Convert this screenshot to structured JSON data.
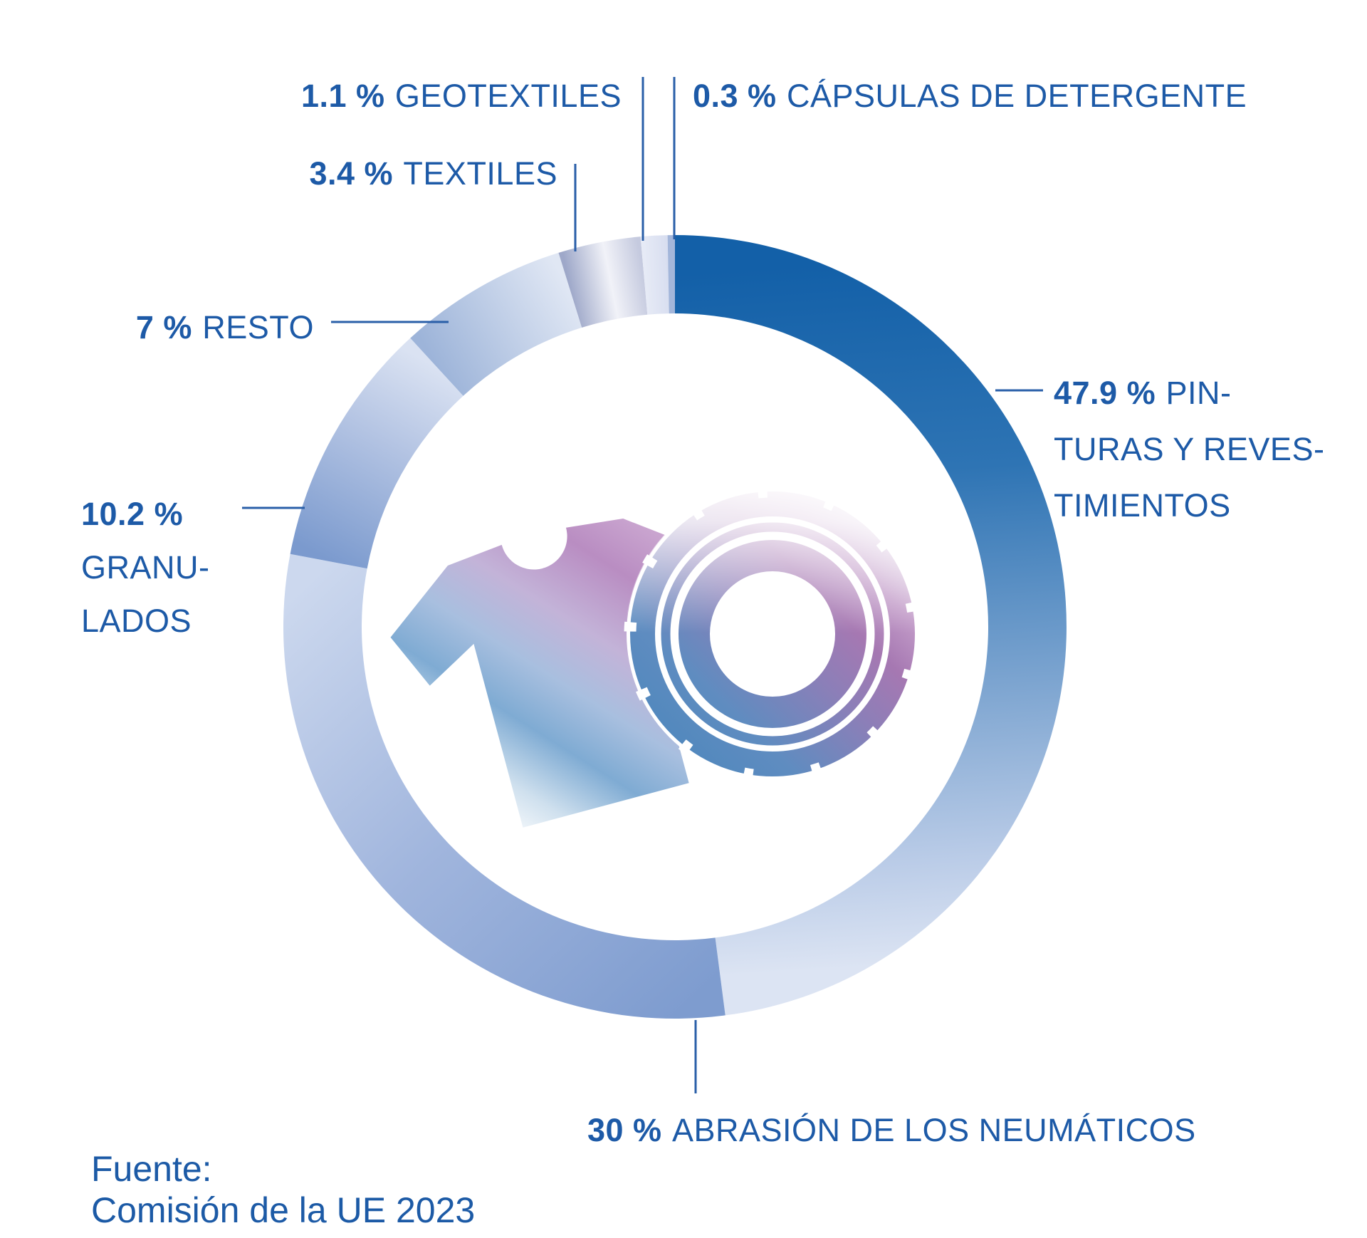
{
  "chart_data": {
    "type": "donut",
    "unit": "%",
    "start_angle_deg": 0,
    "direction": "clockwise",
    "legend_position": "around",
    "center_icons": [
      "tshirt",
      "tire"
    ],
    "slices": [
      {
        "id": "pinturas",
        "value": 47.9,
        "pct": "47.9 %",
        "label": "PIN-\nTURAS Y REVES-\nTIMIENTOS",
        "gradient": [
          {
            "o": 0,
            "c": "#1360a8"
          },
          {
            "o": 0.3,
            "c": "#2e74b4"
          },
          {
            "o": 0.62,
            "c": "#7fa6d1"
          },
          {
            "o": 0.85,
            "c": "#b9cbe7"
          },
          {
            "o": 1,
            "c": "#dce4f3"
          }
        ]
      },
      {
        "id": "abrasion-neumaticos",
        "value": 30,
        "pct": "30 %",
        "label": "ABRASIÓN DE LOS NEUMÁTICOS",
        "gradient": [
          {
            "o": 0,
            "c": "#7e9ccf"
          },
          {
            "o": 0.5,
            "c": "#a0b5dd"
          },
          {
            "o": 1,
            "c": "#ccd8ee"
          }
        ]
      },
      {
        "id": "granulados",
        "value": 10.2,
        "pct": "10.2 %",
        "label": "GRANU-\nLADOS",
        "gradient": [
          {
            "o": 0,
            "c": "#7b9ace"
          },
          {
            "o": 0.6,
            "c": "#b4c4e3"
          },
          {
            "o": 1,
            "c": "#dae2f2"
          }
        ]
      },
      {
        "id": "resto",
        "value": 7,
        "pct": "7 %",
        "label": "RESTO",
        "gradient": [
          {
            "o": 0,
            "c": "#9db4d9"
          },
          {
            "o": 1,
            "c": "#e0e7f4"
          }
        ]
      },
      {
        "id": "textiles",
        "value": 3.4,
        "pct": "3.4 %",
        "label": "TEXTILES",
        "gradient": [
          {
            "o": 0,
            "c": "#9ea8c9"
          },
          {
            "o": 0.55,
            "c": "#f1f2f8"
          },
          {
            "o": 1,
            "c": "#c5cadf"
          }
        ]
      },
      {
        "id": "geotextiles",
        "value": 1.1,
        "pct": "1.1 %",
        "label": "GEOTEXTILES",
        "gradient": [
          {
            "o": 0,
            "c": "#e7ebf6"
          },
          {
            "o": 1,
            "c": "#d8def0"
          }
        ]
      },
      {
        "id": "capsulas-detergente",
        "value": 0.3,
        "pct": "0.3 %",
        "label": "CÁPSULAS DE DETERGENTE",
        "gradient": [
          {
            "o": 0,
            "c": "#a3b6da"
          },
          {
            "o": 1,
            "c": "#a3b6da"
          }
        ]
      }
    ]
  },
  "footer": {
    "source_label": "Fuente:",
    "source_value": "Comisión de la UE 2023"
  },
  "colors": {
    "label_text": "#1d5aa7",
    "connector": "#2a5fa8",
    "donut_dark_blue": "#1360a8",
    "background": "#ffffff"
  },
  "illustration": {
    "tshirt_gradient": [
      {
        "o": 0,
        "c": "#ffffff"
      },
      {
        "o": 0.15,
        "c": "#cfe0ee"
      },
      {
        "o": 0.32,
        "c": "#7fabd3"
      },
      {
        "o": 0.48,
        "c": "#a8bfdf"
      },
      {
        "o": 0.65,
        "c": "#c3b3d8"
      },
      {
        "o": 0.85,
        "c": "#b98dc2"
      },
      {
        "o": 1,
        "c": "#c9a4cf"
      }
    ],
    "tire_gradient": [
      {
        "o": 0,
        "c": "#4d87bd"
      },
      {
        "o": 0.25,
        "c": "#5f8cc0"
      },
      {
        "o": 0.5,
        "c": "#8b7fb8"
      },
      {
        "o": 0.68,
        "c": "#a678b2"
      },
      {
        "o": 0.82,
        "c": "#c29bc8"
      },
      {
        "o": 1,
        "c": "#efe9f3"
      }
    ]
  }
}
